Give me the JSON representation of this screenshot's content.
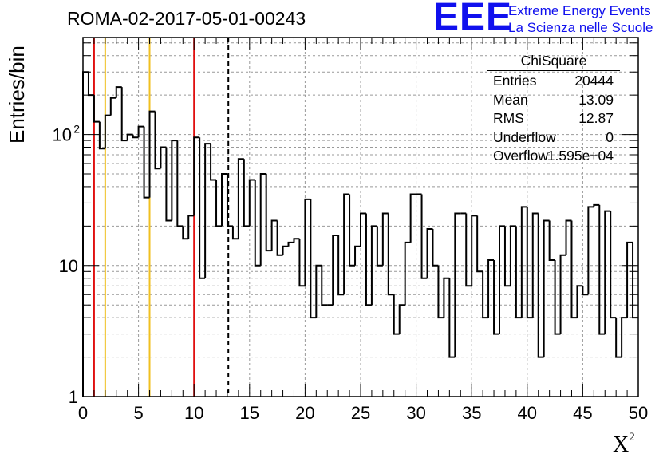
{
  "header": {
    "title": "ROMA-02-2017-05-01-00243",
    "logo_text": "EEE",
    "logo_line1": "Extreme Energy Events",
    "logo_line2": "La Scienza nelle Scuole",
    "logo_color": "#1010ee"
  },
  "stats": {
    "name": "ChiSquare",
    "rows": [
      {
        "key": "Entries",
        "value": "20444"
      },
      {
        "key": "Mean",
        "value": "13.09"
      },
      {
        "key": "RMS",
        "value": "12.87"
      },
      {
        "key": "Underflow",
        "value": "0"
      },
      {
        "key": "Overflow",
        "value": "1.595e+04"
      }
    ]
  },
  "chart_data": {
    "type": "histogram",
    "ylabel": "Entries/bin",
    "xlabel": "X",
    "xlabel_sup": "2",
    "xlim": [
      0,
      50
    ],
    "ylim": [
      1,
      550
    ],
    "y_scale": "log",
    "grid": true,
    "x_ticks": [
      "0",
      "5",
      "10",
      "15",
      "20",
      "25",
      "30",
      "35",
      "40",
      "45",
      "50"
    ],
    "y_ticks": [
      {
        "value": 1,
        "label": "1"
      },
      {
        "value": 10,
        "label": "10"
      },
      {
        "value": 100,
        "label": "10",
        "sup": "2"
      }
    ],
    "bin_width": 0.5,
    "bin_start": 0,
    "values": [
      300,
      200,
      125,
      78,
      140,
      190,
      230,
      90,
      100,
      95,
      115,
      33,
      150,
      55,
      80,
      22,
      90,
      20,
      16,
      24,
      95,
      8,
      85,
      45,
      20,
      50,
      20,
      16,
      65,
      20,
      45,
      10,
      50,
      13,
      22,
      12,
      14,
      15,
      16,
      7,
      32,
      4,
      10,
      5,
      5,
      17,
      6,
      35,
      10,
      14,
      25,
      5,
      20,
      10,
      25,
      6,
      3,
      5,
      15,
      35,
      35,
      8,
      19,
      10,
      4,
      8,
      2,
      25,
      25,
      7,
      24,
      9,
      4,
      11,
      3,
      20,
      7,
      20,
      4,
      28,
      4,
      25,
      2,
      22,
      11,
      3,
      12,
      22,
      4,
      7,
      6,
      28,
      29,
      3,
      26,
      4,
      2,
      4,
      15,
      4
    ],
    "vertical_lines": [
      {
        "x": 1,
        "color": "#e01010",
        "style": "solid"
      },
      {
        "x": 2,
        "color": "#f0c020",
        "style": "solid"
      },
      {
        "x": 6,
        "color": "#f0c020",
        "style": "solid"
      },
      {
        "x": 10,
        "color": "#e01010",
        "style": "solid"
      },
      {
        "x": 13.09,
        "color": "#000000",
        "style": "dashed"
      }
    ]
  }
}
